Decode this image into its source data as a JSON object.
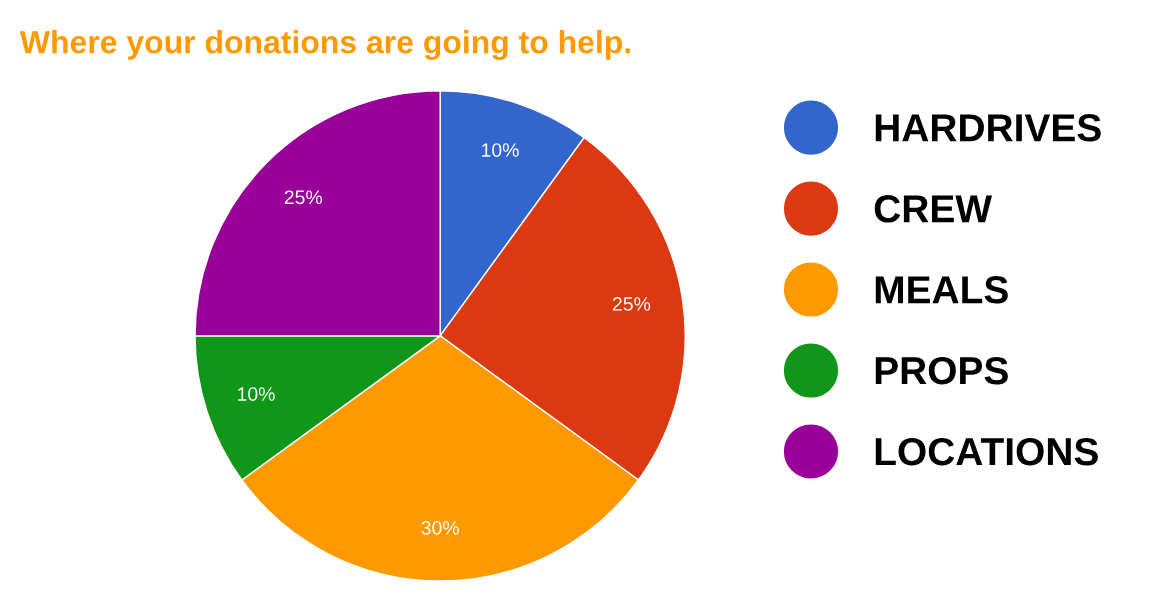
{
  "chart_data": {
    "type": "pie",
    "title": "Where your donations are going to help.",
    "categories": [
      "HARDRIVES",
      "CREW",
      "MEALS",
      "PROPS",
      "LOCATIONS"
    ],
    "values": [
      10,
      25,
      30,
      10,
      25
    ],
    "colors": [
      "#3366cc",
      "#dc3912",
      "#ff9900",
      "#109618",
      "#990099"
    ],
    "value_labels": [
      "10%",
      "25%",
      "30%",
      "10%",
      "25%"
    ],
    "legend": "right"
  }
}
